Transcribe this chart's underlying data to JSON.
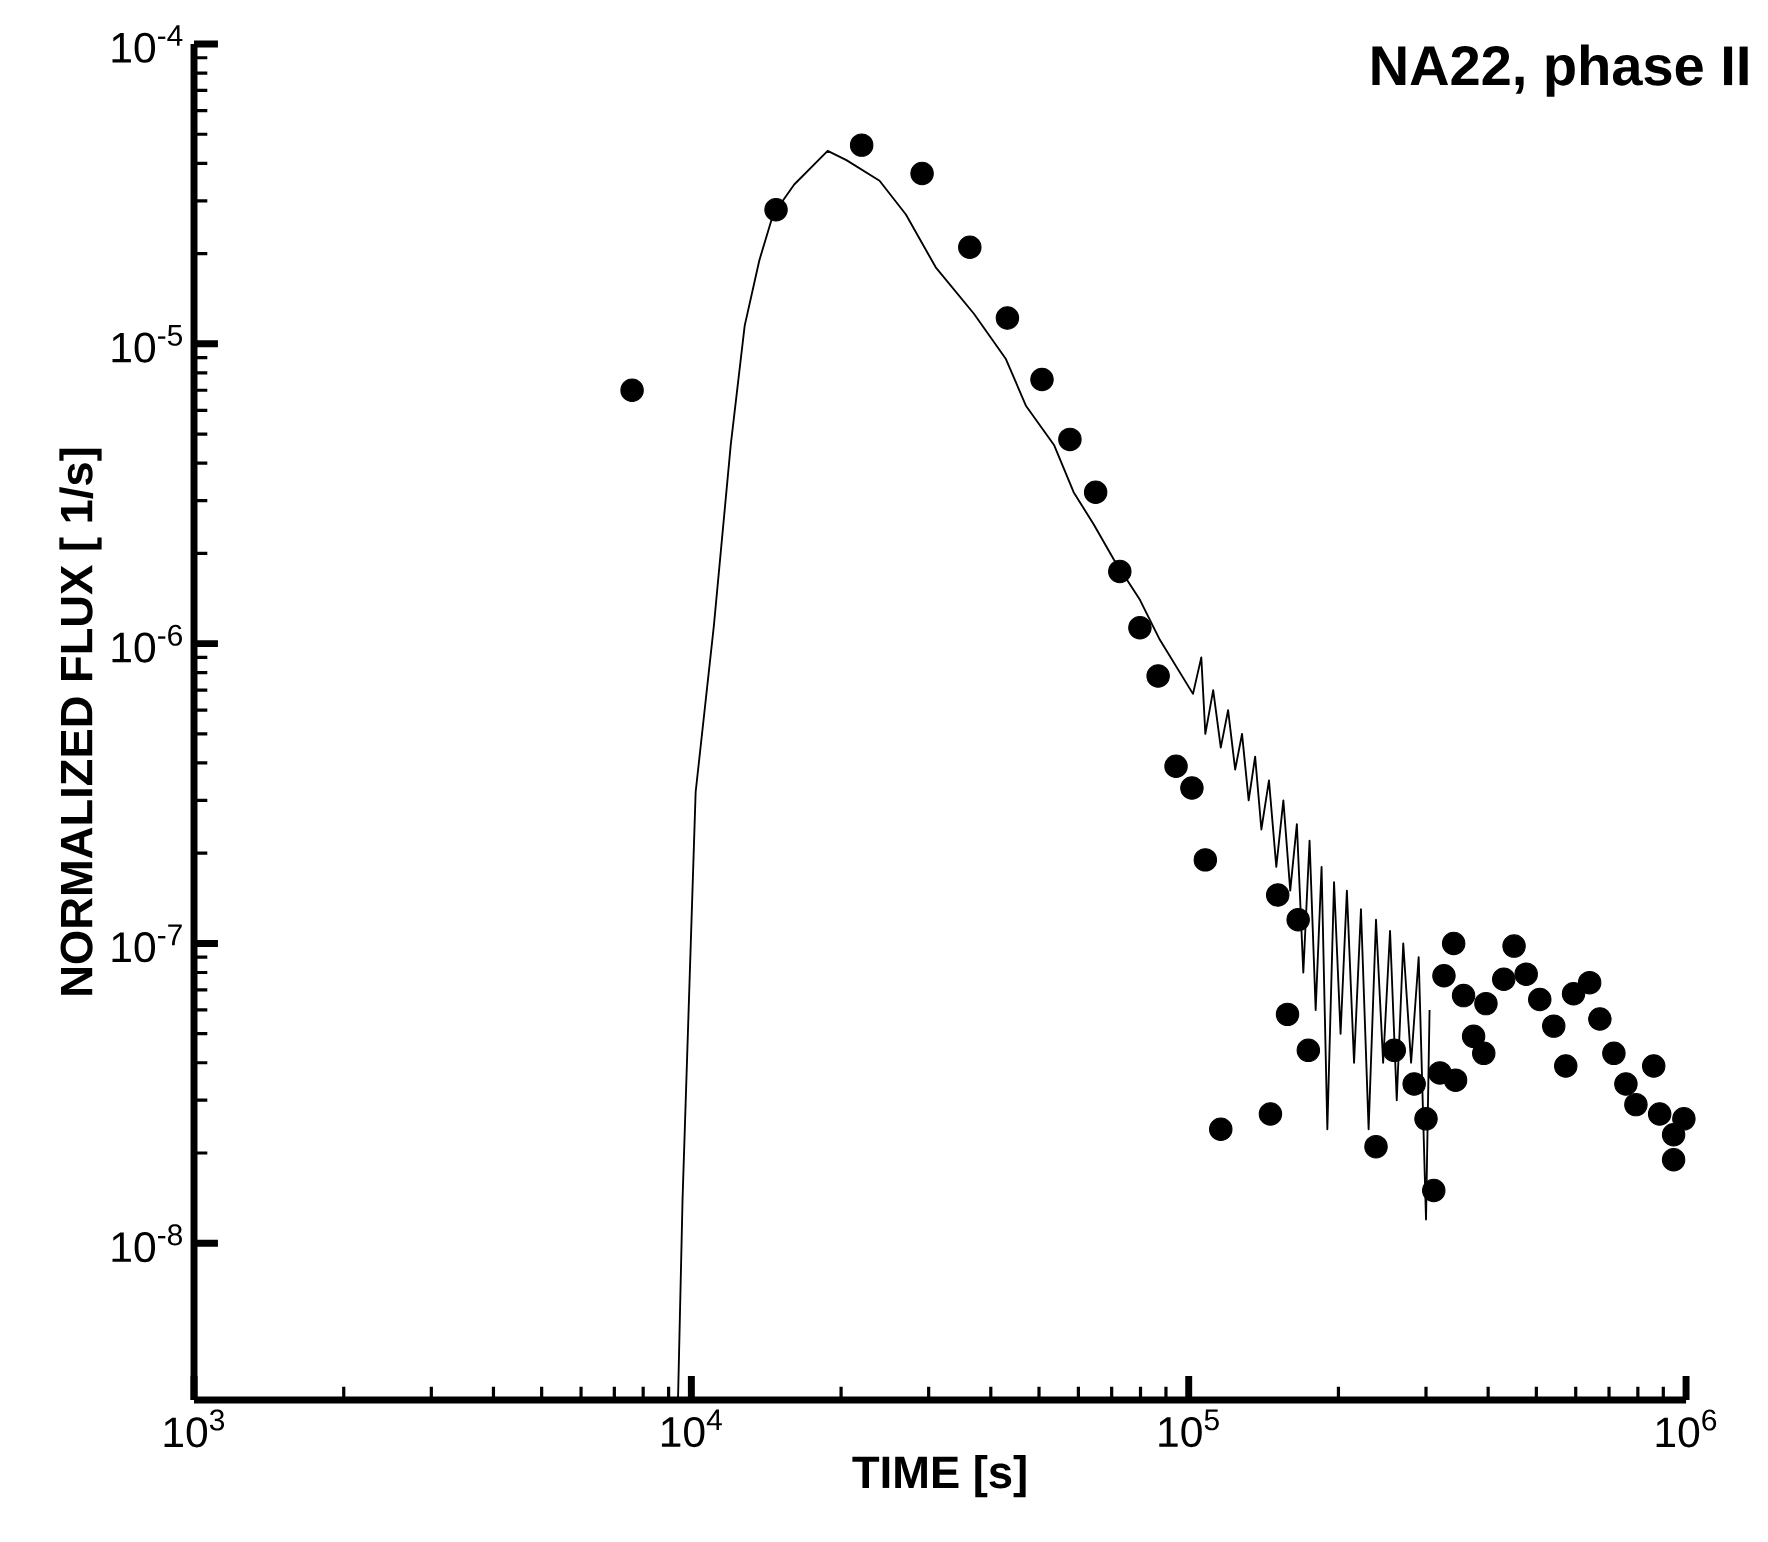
{
  "chart_data": {
    "type": "scatter",
    "title": "NA22, phase II",
    "xlabel": "TIME [s]",
    "ylabel": "NORMALIZED FLUX [ 1/s]",
    "log": "xy",
    "xlim": [
      1000,
      1000000
    ],
    "ylim": [
      3e-09,
      0.0001
    ],
    "xticks": [
      {
        "value": 1000,
        "label": "10$^{3}$"
      },
      {
        "value": 10000,
        "label": "10$^{4}$"
      },
      {
        "value": 100000,
        "label": "10$^{5}$"
      },
      {
        "value": 1000000,
        "label": "10$^{6}$"
      }
    ],
    "yticks": [
      {
        "value": 1e-08,
        "label": "10$^{-8}$"
      },
      {
        "value": 1e-07,
        "label": "10$^{-7}$"
      },
      {
        "value": 1e-06,
        "label": "10$^{-6}$"
      },
      {
        "value": 1e-05,
        "label": "10$^{-5}$"
      },
      {
        "value": 0.0001,
        "label": "10$^{-4}$"
      }
    ],
    "series": [
      {
        "type": "line",
        "color": "#000000",
        "marker": "none",
        "line_style": "solid",
        "x": [
          9400,
          9600,
          10200,
          11100,
          12000,
          12800,
          13700,
          14600,
          16100,
          18800,
          20500,
          23900,
          27000,
          31000,
          37000,
          42900,
          47100,
          53600,
          58700,
          64400,
          70800,
          79800,
          87500,
          102000,
          106000,
          108000,
          112000,
          116000,
          120000,
          124000,
          128000,
          132000,
          136000,
          140000,
          145000,
          150000,
          155000,
          160000,
          165000,
          170000,
          175000,
          180000,
          185000,
          190000,
          196000,
          202000,
          208000,
          215000,
          222000,
          230000,
          238000,
          246000,
          254000,
          262000,
          270000,
          280000,
          290000,
          300000,
          305000
        ],
        "values": [
          3e-09,
          1.4e-08,
          3.2e-07,
          1.15e-06,
          4.6e-06,
          1.15e-05,
          1.9e-05,
          2.7e-05,
          3.4e-05,
          4.4e-05,
          4.1e-05,
          3.5e-05,
          2.7e-05,
          1.8e-05,
          1.26e-05,
          8.9e-06,
          6.2e-06,
          4.6e-06,
          3.2e-06,
          2.5e-06,
          1.9e-06,
          1.4e-06,
          1.03e-06,
          6.8e-07,
          9e-07,
          5e-07,
          7e-07,
          4.5e-07,
          6e-07,
          3.8e-07,
          5e-07,
          3e-07,
          4.2e-07,
          2.4e-07,
          3.5e-07,
          1.8e-07,
          3e-07,
          1.5e-07,
          2.5e-07,
          8e-08,
          2.2e-07,
          6e-08,
          1.8e-07,
          2.4e-08,
          1.6e-07,
          5e-08,
          1.5e-07,
          4e-08,
          1.3e-07,
          2.4e-08,
          1.2e-07,
          4e-08,
          1.1e-07,
          3e-08,
          1e-07,
          4e-08,
          9e-08,
          1.2e-08,
          6e-08
        ]
      },
      {
        "type": "scatter",
        "color": "#000000",
        "marker": "circle",
        "x": [
          7600,
          14800,
          22000,
          29100,
          36300,
          43200,
          50700,
          57700,
          65000,
          72700,
          79800,
          86800,
          94300,
          101500,
          108000,
          116000,
          146000,
          151000,
          158000,
          166000,
          174000,
          238000,
          259000,
          284000,
          300000,
          311000,
          320000,
          326000,
          341000,
          344000,
          357000,
          374000,
          392000,
          396000,
          430000,
          451000,
          477000,
          508000,
          542000,
          573000,
          594000,
          640000,
          671000,
          716000,
          757000,
          793000,
          861000,
          885000,
          944000,
          944000,
          990000
        ],
        "values": [
          7e-06,
          2.8e-05,
          4.6e-05,
          3.7e-05,
          2.1e-05,
          1.22e-05,
          7.6e-06,
          4.8e-06,
          3.2e-06,
          1.74e-06,
          1.13e-06,
          7.8e-07,
          3.9e-07,
          3.3e-07,
          1.9e-07,
          2.4e-08,
          2.7e-08,
          1.45e-07,
          5.8e-08,
          1.2e-07,
          4.4e-08,
          2.1e-08,
          4.4e-08,
          3.4e-08,
          2.6e-08,
          1.5e-08,
          3.7e-08,
          7.8e-08,
          1e-07,
          3.5e-08,
          6.7e-08,
          4.9e-08,
          4.3e-08,
          6.3e-08,
          7.6e-08,
          9.8e-08,
          7.9e-08,
          6.5e-08,
          5.3e-08,
          3.9e-08,
          6.8e-08,
          7.4e-08,
          5.6e-08,
          4.3e-08,
          3.4e-08,
          2.9e-08,
          3.9e-08,
          2.7e-08,
          2.3e-08,
          1.9e-08,
          2.6e-08
        ]
      }
    ]
  }
}
